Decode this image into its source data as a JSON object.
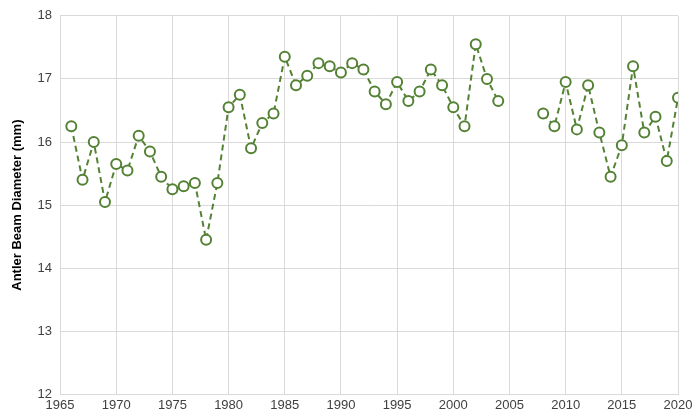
{
  "chart_data": {
    "type": "line",
    "y_label": "Antler Beam Diameter (mm)",
    "x": [
      1966,
      1967,
      1968,
      1969,
      1970,
      1971,
      1972,
      1973,
      1974,
      1975,
      1976,
      1977,
      1978,
      1979,
      1980,
      1981,
      1982,
      1983,
      1984,
      1985,
      1986,
      1987,
      1988,
      1989,
      1990,
      1991,
      1992,
      1993,
      1994,
      1995,
      1996,
      1997,
      1998,
      1999,
      2000,
      2001,
      2002,
      2003,
      2004,
      2005,
      2006,
      2007,
      2008,
      2009,
      2010,
      2011,
      2012,
      2013,
      2014,
      2015,
      2016,
      2017,
      2018,
      2019,
      2020
    ],
    "values": [
      16.25,
      15.4,
      16.0,
      15.05,
      15.65,
      15.55,
      16.1,
      15.85,
      15.45,
      15.25,
      15.3,
      15.35,
      14.45,
      15.35,
      16.55,
      16.75,
      15.9,
      16.3,
      16.45,
      17.35,
      16.9,
      17.05,
      17.25,
      17.2,
      17.1,
      17.25,
      17.15,
      16.8,
      16.6,
      16.95,
      16.65,
      16.8,
      17.15,
      16.9,
      16.55,
      16.25,
      17.55,
      17.0,
      16.65,
      null,
      null,
      null,
      16.45,
      16.25,
      16.95,
      16.2,
      16.9,
      16.15,
      15.45,
      15.95,
      17.2,
      16.15,
      16.4,
      15.7,
      16.7
    ],
    "color": "#548235",
    "marker": "circle",
    "line_style": "dashed",
    "xlim": [
      1965,
      2020
    ],
    "xticks": [
      1965,
      1970,
      1975,
      1980,
      1985,
      1990,
      1995,
      2000,
      2005,
      2010,
      2015,
      2020
    ],
    "ylim": [
      12,
      18
    ],
    "yticks": [
      12,
      13,
      14,
      15,
      16,
      17,
      18
    ],
    "grid": true
  }
}
